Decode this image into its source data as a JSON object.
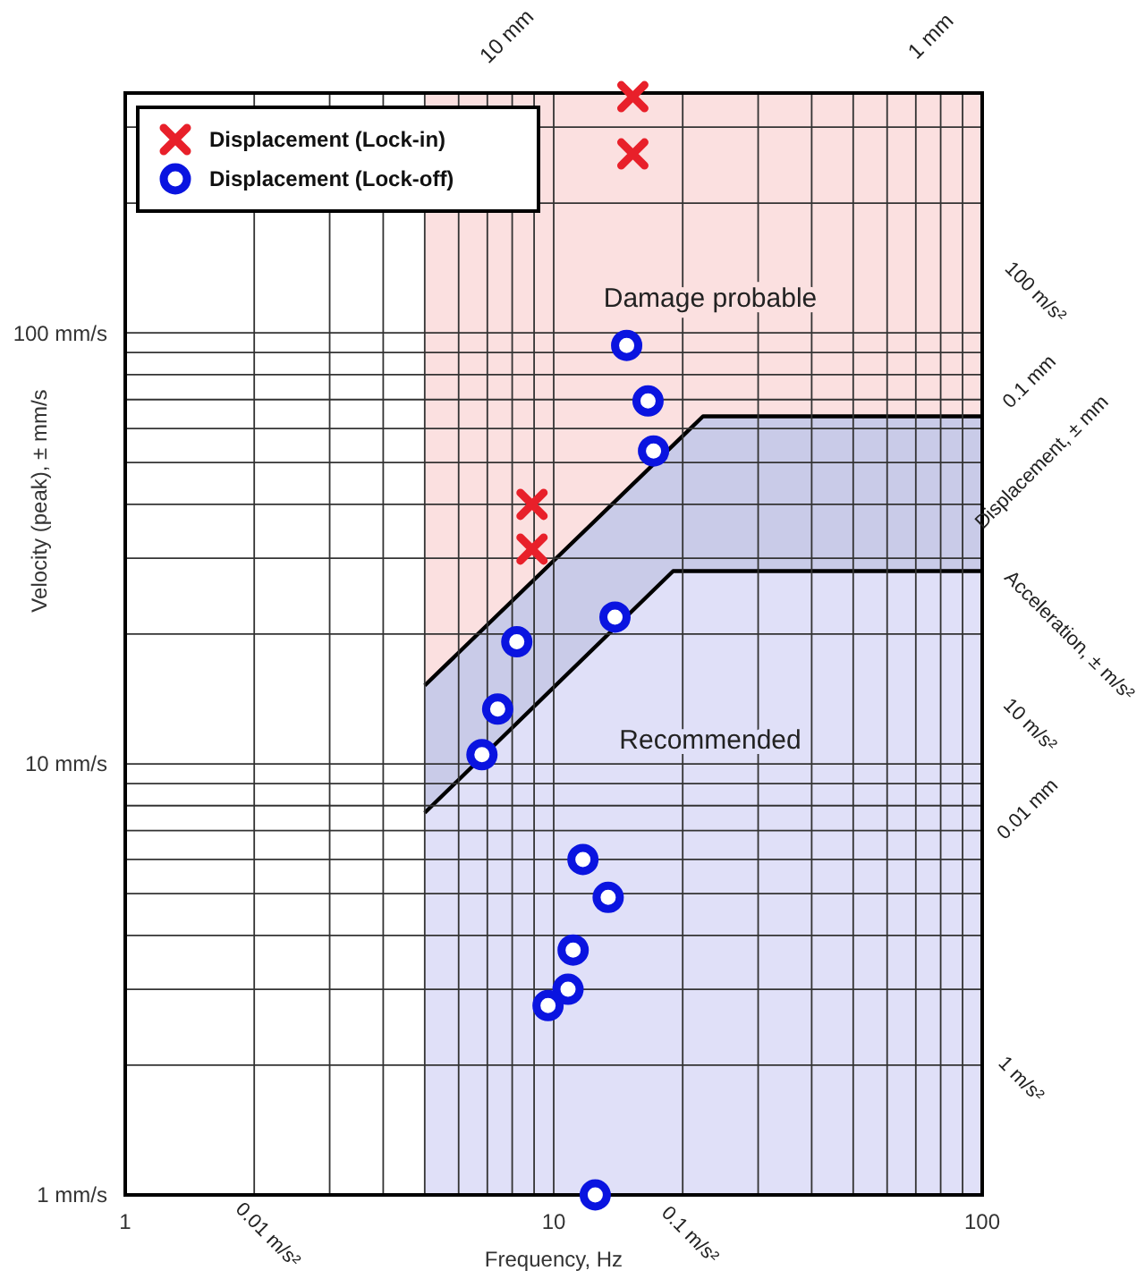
{
  "chart_data": {
    "type": "scatter",
    "xlabel": "Frequency, Hz",
    "ylabel": "Velocity (peak), ± mm/s",
    "log": "xy",
    "grid": true,
    "legend": "top left",
    "xlim": [
      1,
      100
    ],
    "ylim": [
      1,
      360
    ],
    "xticks": [
      1,
      {
        "value": 2,
        "label": null
      },
      {
        "value": 3,
        "label": null
      },
      {
        "value": 4,
        "label": null
      },
      {
        "value": 5,
        "label": null
      },
      {
        "value": 6,
        "label": null
      },
      {
        "value": 7,
        "label": null
      },
      {
        "value": 8,
        "label": null
      },
      {
        "value": 9,
        "label": null
      },
      10,
      {
        "value": 20,
        "label": null
      },
      {
        "value": 30,
        "label": null
      },
      {
        "value": 40,
        "label": null
      },
      {
        "value": 50,
        "label": null
      },
      {
        "value": 60,
        "label": null
      },
      {
        "value": 70,
        "label": null
      },
      {
        "value": 80,
        "label": null
      },
      {
        "value": 90,
        "label": null
      },
      100
    ],
    "yticks": [
      {
        "value": 1,
        "label": "1 mm/s"
      },
      {
        "value": 2,
        "label": null
      },
      {
        "value": 3,
        "label": null
      },
      {
        "value": 4,
        "label": null
      },
      {
        "value": 5,
        "label": null
      },
      {
        "value": 6,
        "label": null
      },
      {
        "value": 7,
        "label": null
      },
      {
        "value": 8,
        "label": null
      },
      {
        "value": 9,
        "label": null
      },
      {
        "value": 10,
        "label": "10 mm/s"
      },
      {
        "value": 20,
        "label": null
      },
      {
        "value": 30,
        "label": null
      },
      {
        "value": 40,
        "label": null
      },
      {
        "value": 50,
        "label": null
      },
      {
        "value": 60,
        "label": null
      },
      {
        "value": 70,
        "label": null
      },
      {
        "value": 80,
        "label": null
      },
      {
        "value": 90,
        "label": null
      },
      {
        "value": 100,
        "label": "100 mm/s"
      },
      {
        "value": 200,
        "label": null
      },
      {
        "value": 300,
        "label": null
      }
    ],
    "bands": [
      {
        "axis": "x",
        "from": 5,
        "to": 100,
        "color": "#fbe0e0"
      }
    ],
    "annotations": [
      "Damage probable",
      "Recommended",
      "10 mm",
      "1 mm",
      "100 m/s²",
      "0.1 mm",
      "Displacement, ± mm",
      "Acceleration, ± m/s²",
      "10 m/s²",
      "0.01 mm",
      "1 m/s²",
      "0.01 m/s²",
      "0.1 m/s²"
    ],
    "series": [
      {
        "type": "area",
        "color": "#c9cbe8",
        "x": [
          5,
          22.3,
          100
        ],
        "values": [
          15.2,
          64,
          64
        ]
      },
      {
        "type": "area",
        "color": "#e0e0f8",
        "x": [
          5,
          19,
          100
        ],
        "values": [
          7.7,
          28,
          28
        ]
      },
      {
        "name": "Displacement (Lock-in)",
        "color": "#e8202a",
        "marker": "cross",
        "x": [
          15.3,
          15.3,
          8.9,
          8.9
        ],
        "values": [
          353,
          260,
          40,
          31.5
        ]
      },
      {
        "name": "Displacement (Lock-off)",
        "color": "#0a14e0",
        "marker": "circle",
        "x": [
          14.8,
          16.6,
          17.1,
          13.9,
          8.2,
          7.4,
          6.8,
          11.7,
          13.4,
          11.1,
          10.8,
          9.7,
          12.5
        ],
        "values": [
          93.5,
          69.5,
          53.2,
          21.9,
          19.2,
          13.4,
          10.5,
          6.0,
          4.9,
          3.7,
          3.0,
          2.75,
          1.0
        ]
      }
    ]
  }
}
